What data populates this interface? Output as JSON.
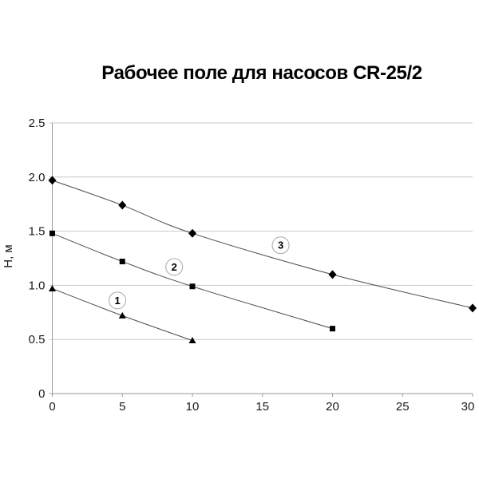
{
  "chart": {
    "title": "Рабочее поле для насосов CR-25/2"
  },
  "chart_data": {
    "type": "line",
    "title": "Рабочее поле для насосов CR-25/2",
    "xlabel": "",
    "ylabel": "Н, м",
    "xlim": [
      0,
      30
    ],
    "ylim": [
      0,
      2.5
    ],
    "grid": "horizontal-only",
    "legend_position": "none (curves annotated with circled numbers on plot)",
    "xticks": [
      {
        "v": 0,
        "label": "0"
      },
      {
        "v": 5,
        "label": "5"
      },
      {
        "v": 10,
        "label": "10"
      },
      {
        "v": 15,
        "label": "15"
      },
      {
        "v": 20,
        "label": "20"
      },
      {
        "v": 25,
        "label": "25"
      },
      {
        "v": 30,
        "label": "30"
      }
    ],
    "yticks": [
      {
        "v": 0,
        "label": "0"
      },
      {
        "v": 0.5,
        "label": "0.5"
      },
      {
        "v": 1.0,
        "label": "1.0"
      },
      {
        "v": 1.5,
        "label": "1.5"
      },
      {
        "v": 2.0,
        "label": "2.0"
      },
      {
        "v": 2.5,
        "label": "2.5"
      }
    ],
    "series": [
      {
        "name": "1",
        "marker": "triangle",
        "points": [
          [
            0,
            0.97
          ],
          [
            5,
            0.72
          ],
          [
            10,
            0.49
          ]
        ],
        "label_pos": [
          4.65,
          0.86
        ]
      },
      {
        "name": "2",
        "marker": "square",
        "points": [
          [
            0,
            1.48
          ],
          [
            5,
            1.22
          ],
          [
            10,
            0.99
          ],
          [
            20,
            0.6
          ]
        ],
        "label_pos": [
          8.7,
          1.17
        ]
      },
      {
        "name": "3",
        "marker": "diamond",
        "points": [
          [
            0,
            1.97
          ],
          [
            5,
            1.74
          ],
          [
            10,
            1.48
          ],
          [
            20,
            1.1
          ],
          [
            30,
            0.79
          ]
        ],
        "label_pos": [
          16.3,
          1.37
        ]
      }
    ]
  },
  "colors": {
    "text": "#1a1a1a",
    "grid": "#c9c9c9",
    "axis": "#9a9a9a",
    "line": "#4d4d4d",
    "marker": "#000000",
    "annotation_circle_stroke": "#a6a6a6",
    "annotation_circle_fill": "#ffffff"
  }
}
